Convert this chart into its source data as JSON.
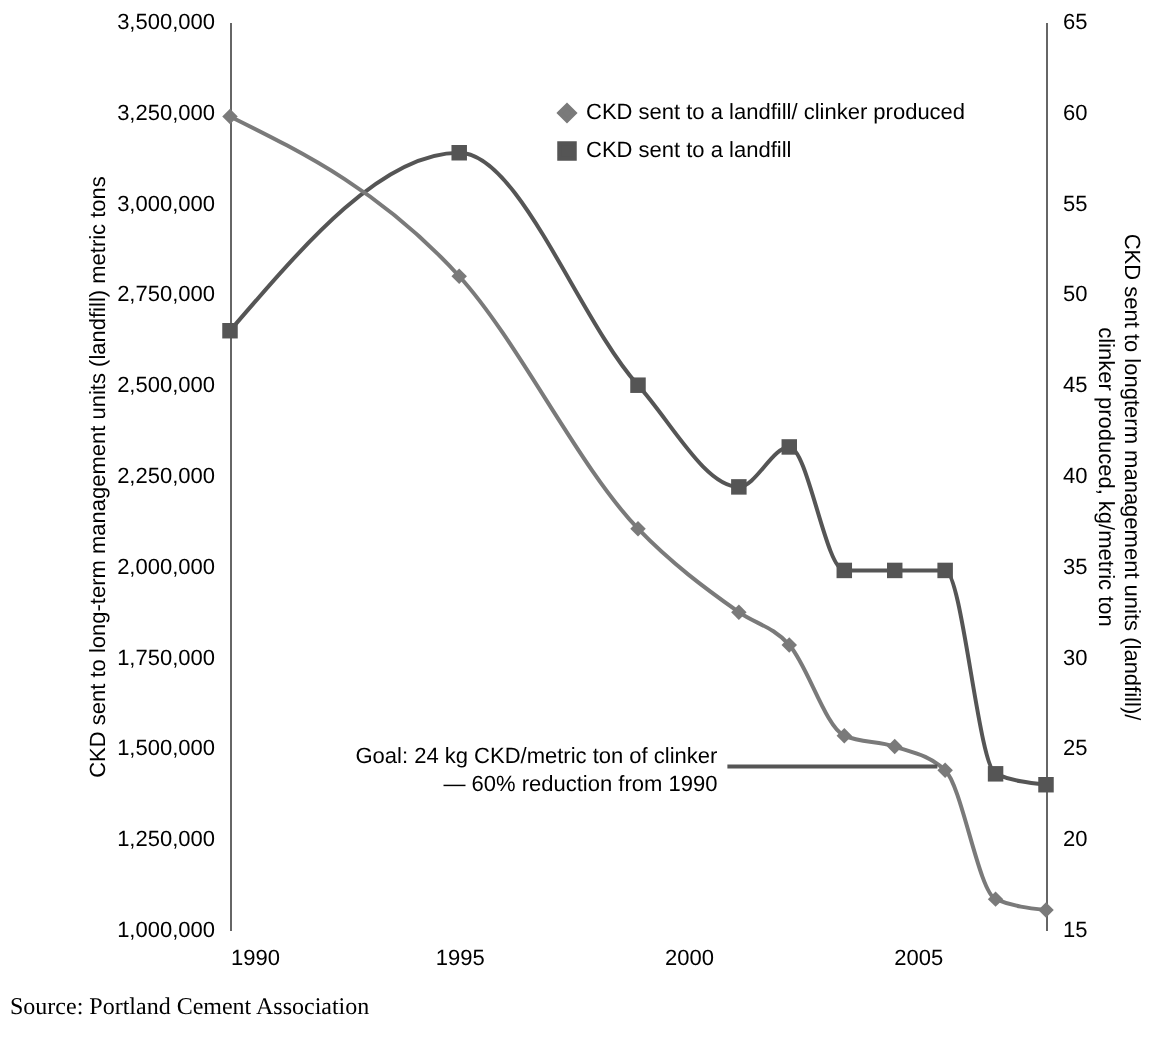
{
  "chart_data": {
    "type": "line",
    "ylabel": "CKD sent to long-term management units (landfill) metric tons",
    "y2label": "CKD sent to longterm management units (landfill)/\nclinker produced, kg/metric ton",
    "x": [
      1990,
      1995,
      1998.9,
      2001.1,
      2002.2,
      2003.4,
      2004.5,
      2005.6,
      2006.7,
      2007.8
    ],
    "xlim": [
      1990,
      2007.8
    ],
    "xticks": [
      1990,
      1995,
      2000,
      2005
    ],
    "ylim": [
      1000000,
      3500000
    ],
    "yticks": [
      {
        "value": 1000000,
        "label": "1,000,000"
      },
      {
        "value": 1250000,
        "label": "1,250,000"
      },
      {
        "value": 1500000,
        "label": "1,500,000"
      },
      {
        "value": 1750000,
        "label": "1,750,000"
      },
      {
        "value": 2000000,
        "label": "2,000,000"
      },
      {
        "value": 2250000,
        "label": "2,250,000"
      },
      {
        "value": 2500000,
        "label": "2,500,000"
      },
      {
        "value": 2750000,
        "label": "2,750,000"
      },
      {
        "value": 3000000,
        "label": "3,000,000"
      },
      {
        "value": 3250000,
        "label": "3,250,000"
      },
      {
        "value": 3500000,
        "label": "3,500,000"
      }
    ],
    "y2lim": [
      15,
      65
    ],
    "y2ticks": [
      15,
      20,
      25,
      30,
      35,
      40,
      45,
      50,
      55,
      60,
      65
    ],
    "series": [
      {
        "name": "CKD sent to a landfill/ clinker produced",
        "color": "#7a7a7a",
        "axis": "y2",
        "marker": "diamond",
        "values": [
          59.8,
          51.0,
          37.1,
          32.5,
          30.7,
          25.7,
          25.1,
          23.8,
          16.7,
          16.1
        ]
      },
      {
        "name": "CKD sent to a landfill",
        "color": "#555555",
        "axis": "y",
        "marker": "square",
        "values": [
          2650000,
          3140000,
          2500000,
          2220000,
          2330000,
          1990000,
          1990000,
          1990000,
          1430000,
          1400000
        ]
      }
    ],
    "ref_lines": [
      {
        "axis": "y2",
        "value": 24,
        "label": "Goal: 24 kg CKD/metric ton of clinker\n— 60% reduction from 1990",
        "color": "#555555",
        "line_style": "solid"
      }
    ],
    "annotations": [
      "Source: Portland Cement Association"
    ],
    "legend": "top right",
    "grid": false,
    "line_style": "solid"
  }
}
